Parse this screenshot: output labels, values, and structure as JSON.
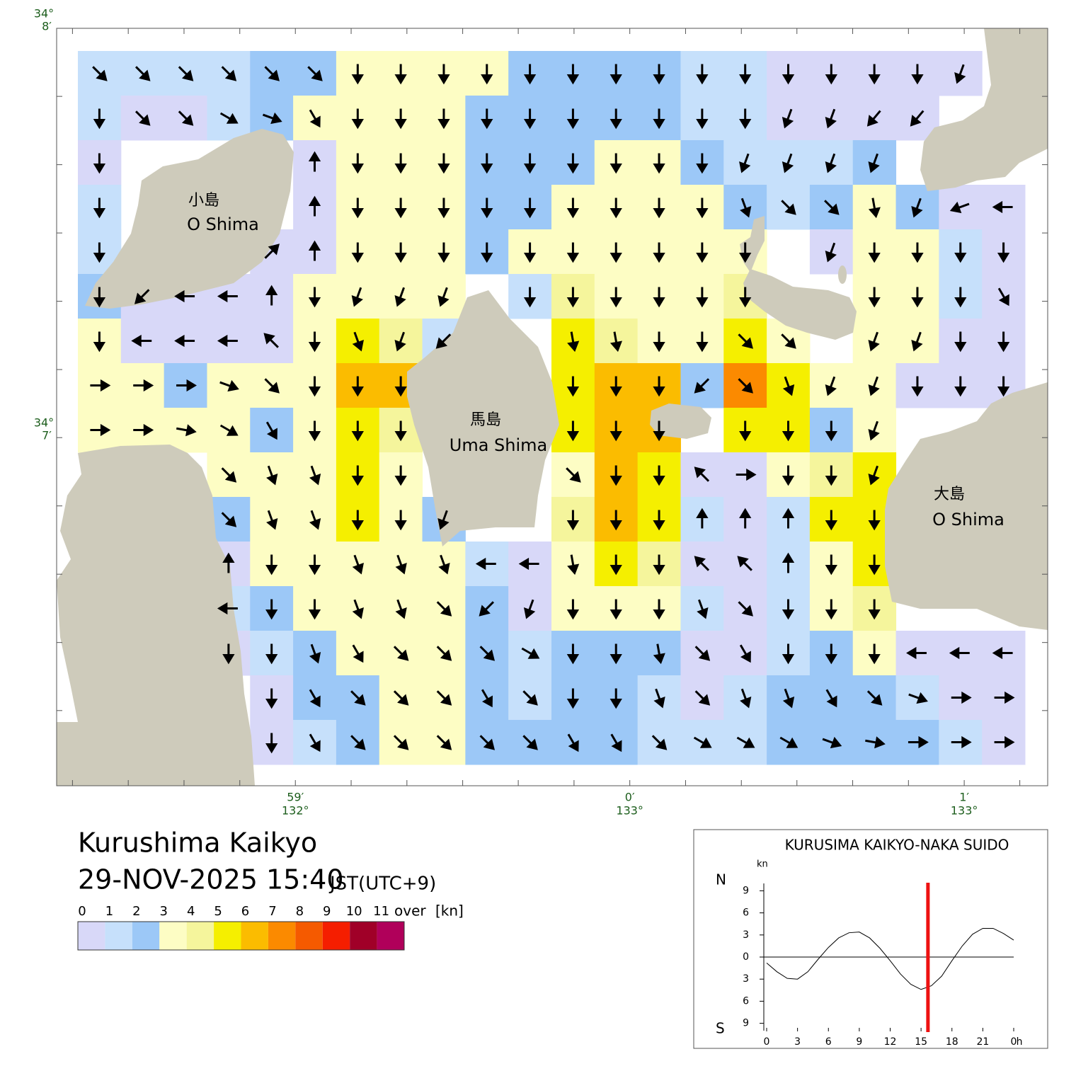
{
  "title": "Kurushima Kaikyo",
  "datetime": "29-NOV-2025 15:40",
  "timezone": "JST(UTC+9)",
  "places": [
    {
      "name": "小島",
      "romaji": "O Shima"
    },
    {
      "name": "馬島",
      "romaji": "Uma Shima"
    },
    {
      "name": "大島",
      "romaji": "O Shima"
    }
  ],
  "map": {
    "xlim": [
      132.97143,
      133.02083
    ],
    "ylim": [
      34.1025,
      34.13333
    ],
    "lat_ticks": [
      {
        "value": 34.13333,
        "degrees": "34°",
        "minutes": "8′"
      },
      {
        "value": 34.11667,
        "degrees": "34°",
        "minutes": "7′"
      }
    ],
    "lon_ticks": [
      {
        "value": 132.98333,
        "degrees": "132°",
        "minutes": "59′"
      },
      {
        "value": 133.0,
        "degrees": "133°",
        "minutes": "0′"
      },
      {
        "value": 133.01667,
        "degrees": "133°",
        "minutes": "1′"
      }
    ],
    "lat_minor_ticks": [
      34.13333,
      34.13056,
      34.12778,
      34.125,
      34.12222,
      34.11944,
      34.11667,
      34.11389,
      34.11111,
      34.10833,
      34.10556
    ],
    "lon_minor_ticks": [
      132.97222,
      132.975,
      132.97778,
      132.98056,
      132.98333,
      132.98611,
      132.98889,
      132.99167,
      132.99444,
      132.99722,
      133.0,
      133.00278,
      133.00556,
      133.00833,
      133.01111,
      133.01389,
      133.01667,
      133.01944
    ]
  },
  "current": {
    "speed": [
      [
        1.5,
        1.5,
        1.5,
        1.5,
        2.5,
        2.5,
        3.5,
        3.5,
        3.5,
        3.5,
        2.5,
        2.5,
        2.5,
        2.5,
        1.5,
        1.5,
        0.5,
        0.5,
        0.5,
        0.5,
        0.5,
        null
      ],
      [
        1.5,
        0.5,
        0.5,
        1.5,
        2.5,
        3.5,
        3.5,
        3.5,
        3.5,
        2.5,
        2.5,
        2.5,
        2.5,
        2.5,
        1.5,
        1.5,
        0.5,
        0.5,
        0.5,
        0.5,
        null,
        null
      ],
      [
        0.5,
        null,
        null,
        null,
        null,
        0.5,
        3.5,
        3.5,
        3.5,
        2.5,
        2.5,
        2.5,
        3.5,
        3.5,
        2.5,
        1.5,
        1.5,
        1.5,
        2.5,
        null,
        null,
        null
      ],
      [
        1.5,
        null,
        null,
        null,
        null,
        0.5,
        3.5,
        3.5,
        3.5,
        2.5,
        2.5,
        3.5,
        3.5,
        3.5,
        3.5,
        2.5,
        1.5,
        2.5,
        3.5,
        2.5,
        0.5,
        0.5
      ],
      [
        1.5,
        null,
        null,
        null,
        0.5,
        0.5,
        3.5,
        3.5,
        3.5,
        2.5,
        3.5,
        3.5,
        3.5,
        3.5,
        3.5,
        3.5,
        null,
        0.5,
        3.5,
        3.5,
        1.5,
        0.5
      ],
      [
        2.5,
        0.5,
        0.5,
        0.5,
        0.5,
        3.5,
        3.5,
        3.5,
        3.5,
        null,
        1.5,
        4.5,
        3.5,
        3.5,
        3.5,
        4.5,
        null,
        null,
        3.5,
        3.5,
        1.5,
        0.5
      ],
      [
        3.5,
        0.5,
        0.5,
        0.5,
        0.5,
        3.5,
        5.5,
        4.5,
        1.5,
        null,
        null,
        5.5,
        4.5,
        3.5,
        3.5,
        5.5,
        3.5,
        null,
        3.5,
        3.5,
        0.5,
        0.5
      ],
      [
        3.5,
        3.5,
        2.5,
        3.5,
        3.5,
        3.5,
        6.5,
        6.5,
        null,
        null,
        null,
        5.5,
        6.5,
        6.5,
        2.5,
        7.5,
        5.5,
        3.5,
        3.5,
        0.5,
        0.5,
        0.5
      ],
      [
        3.5,
        3.5,
        3.5,
        3.5,
        2.5,
        3.5,
        5.5,
        4.5,
        null,
        null,
        null,
        5.5,
        6.5,
        6.5,
        null,
        5.5,
        5.5,
        2.5,
        3.5,
        null,
        null,
        null
      ],
      [
        null,
        null,
        null,
        3.5,
        3.5,
        3.5,
        5.5,
        3.5,
        null,
        null,
        null,
        3.5,
        6.5,
        5.5,
        0.5,
        0.5,
        3.5,
        4.5,
        5.5,
        null,
        null,
        null
      ],
      [
        null,
        null,
        null,
        2.5,
        3.5,
        3.5,
        5.5,
        3.5,
        2.5,
        null,
        null,
        4.5,
        6.5,
        5.5,
        1.5,
        0.5,
        1.5,
        5.5,
        5.5,
        null,
        null,
        null
      ],
      [
        null,
        null,
        null,
        0.5,
        3.5,
        3.5,
        3.5,
        3.5,
        3.5,
        1.5,
        0.5,
        3.5,
        5.5,
        4.5,
        0.5,
        0.5,
        1.5,
        3.5,
        5.5,
        null,
        null,
        null
      ],
      [
        null,
        null,
        null,
        1.5,
        2.5,
        3.5,
        3.5,
        3.5,
        3.5,
        2.5,
        0.5,
        3.5,
        3.5,
        3.5,
        1.5,
        0.5,
        1.5,
        3.5,
        4.5,
        null,
        null,
        null
      ],
      [
        null,
        null,
        null,
        0.5,
        1.5,
        2.5,
        3.5,
        3.5,
        3.5,
        2.5,
        1.5,
        2.5,
        2.5,
        2.5,
        0.5,
        0.5,
        1.5,
        2.5,
        3.5,
        0.5,
        0.5,
        0.5
      ],
      [
        null,
        null,
        null,
        null,
        0.5,
        2.5,
        2.5,
        3.5,
        3.5,
        2.5,
        1.5,
        2.5,
        2.5,
        1.5,
        0.5,
        1.5,
        2.5,
        2.5,
        2.5,
        1.5,
        0.5,
        0.5
      ],
      [
        null,
        null,
        null,
        null,
        0.5,
        1.5,
        2.5,
        3.5,
        3.5,
        2.5,
        2.5,
        2.5,
        2.5,
        1.5,
        1.5,
        1.5,
        2.5,
        2.5,
        2.5,
        2.5,
        1.5,
        0.5
      ]
    ],
    "direction": [
      [
        135,
        135,
        135,
        135,
        135,
        135,
        180,
        180,
        180,
        180,
        180,
        180,
        180,
        180,
        180,
        180,
        180,
        180,
        180,
        180,
        200,
        null
      ],
      [
        180,
        135,
        135,
        120,
        110,
        150,
        180,
        180,
        180,
        180,
        180,
        180,
        180,
        180,
        180,
        180,
        200,
        200,
        220,
        220,
        null,
        null
      ],
      [
        180,
        null,
        null,
        null,
        null,
        0,
        180,
        180,
        180,
        180,
        180,
        180,
        180,
        180,
        180,
        200,
        200,
        200,
        200,
        null,
        null,
        null
      ],
      [
        180,
        null,
        null,
        null,
        null,
        0,
        180,
        180,
        180,
        180,
        180,
        180,
        180,
        180,
        180,
        160,
        135,
        135,
        170,
        200,
        250,
        270
      ],
      [
        180,
        null,
        null,
        null,
        45,
        0,
        180,
        180,
        180,
        180,
        180,
        180,
        180,
        180,
        180,
        180,
        null,
        200,
        180,
        180,
        180,
        180
      ],
      [
        180,
        225,
        270,
        270,
        0,
        180,
        200,
        200,
        200,
        null,
        180,
        180,
        180,
        180,
        180,
        180,
        null,
        null,
        180,
        180,
        180,
        150
      ],
      [
        180,
        270,
        270,
        270,
        315,
        180,
        160,
        200,
        225,
        null,
        null,
        170,
        170,
        180,
        180,
        135,
        135,
        null,
        200,
        200,
        180,
        180
      ],
      [
        90,
        90,
        90,
        110,
        135,
        180,
        180,
        180,
        null,
        null,
        null,
        180,
        180,
        180,
        225,
        135,
        160,
        200,
        200,
        180,
        180,
        180
      ],
      [
        90,
        90,
        100,
        120,
        150,
        180,
        180,
        180,
        null,
        null,
        null,
        180,
        180,
        180,
        null,
        180,
        180,
        180,
        200,
        null,
        null,
        null
      ],
      [
        null,
        null,
        null,
        135,
        160,
        160,
        180,
        180,
        null,
        null,
        null,
        135,
        180,
        180,
        315,
        90,
        180,
        180,
        200,
        null,
        null,
        null
      ],
      [
        null,
        null,
        null,
        135,
        160,
        160,
        180,
        180,
        200,
        null,
        null,
        180,
        180,
        180,
        0,
        0,
        0,
        180,
        180,
        null,
        null,
        null
      ],
      [
        null,
        null,
        null,
        0,
        180,
        180,
        160,
        160,
        160,
        270,
        270,
        170,
        180,
        180,
        315,
        315,
        0,
        180,
        180,
        null,
        null,
        null
      ],
      [
        null,
        null,
        null,
        270,
        180,
        180,
        160,
        160,
        135,
        225,
        200,
        180,
        180,
        180,
        160,
        135,
        180,
        180,
        180,
        null,
        null,
        null
      ],
      [
        null,
        null,
        null,
        180,
        180,
        160,
        150,
        135,
        135,
        135,
        120,
        180,
        180,
        170,
        135,
        150,
        180,
        180,
        180,
        270,
        270,
        270
      ],
      [
        null,
        null,
        null,
        null,
        180,
        150,
        135,
        135,
        135,
        150,
        135,
        180,
        180,
        160,
        135,
        160,
        160,
        150,
        135,
        110,
        90,
        90
      ],
      [
        null,
        null,
        null,
        null,
        180,
        150,
        135,
        135,
        135,
        135,
        135,
        150,
        150,
        135,
        120,
        120,
        120,
        110,
        100,
        90,
        90,
        90
      ]
    ]
  },
  "colorbar": {
    "bounds": [
      0,
      1,
      2,
      3,
      4,
      5,
      6,
      7,
      8,
      9,
      10,
      11
    ],
    "over": "over",
    "unit": "[kn]",
    "colors": [
      "#d8d8f8",
      "#c6e0fb",
      "#9cc8f7",
      "#fdfdc4",
      "#f5f59c",
      "#f5ef00",
      "#fbbc00",
      "#fb8a00",
      "#f55a00",
      "#f51e00",
      "#a00028",
      "#b0005a"
    ]
  },
  "tide": {
    "title": "KURUSIMA KAIKYO-NAKA SUIDO",
    "unit": "kn",
    "north": "N",
    "south": "S",
    "x_unit": "h",
    "xlim": [
      0,
      24
    ],
    "ylim": [
      -10,
      10
    ],
    "xticks": [
      0,
      3,
      6,
      9,
      12,
      15,
      18,
      21,
      {
        "value": 24,
        "label": "0"
      }
    ],
    "yticks": [
      9,
      6,
      3,
      0,
      {
        "value": -3,
        "label": "3"
      },
      {
        "value": -6,
        "label": "6"
      },
      {
        "value": -9,
        "label": "9"
      }
    ],
    "hours": [
      0,
      1,
      2,
      3,
      4,
      5,
      6,
      7,
      8,
      9,
      10,
      11,
      12,
      13,
      14,
      15,
      16,
      17,
      18,
      19,
      20,
      21,
      22,
      23,
      24
    ],
    "values": [
      -0.8,
      -2.0,
      -2.9,
      -3.0,
      -2.0,
      -0.3,
      1.3,
      2.6,
      3.3,
      3.4,
      2.6,
      1.2,
      -0.5,
      -2.3,
      -3.7,
      -4.4,
      -3.9,
      -2.6,
      -0.5,
      1.5,
      3.1,
      3.9,
      3.9,
      3.2,
      2.3
    ],
    "now": 15.67,
    "now_color": "#ee1111"
  }
}
